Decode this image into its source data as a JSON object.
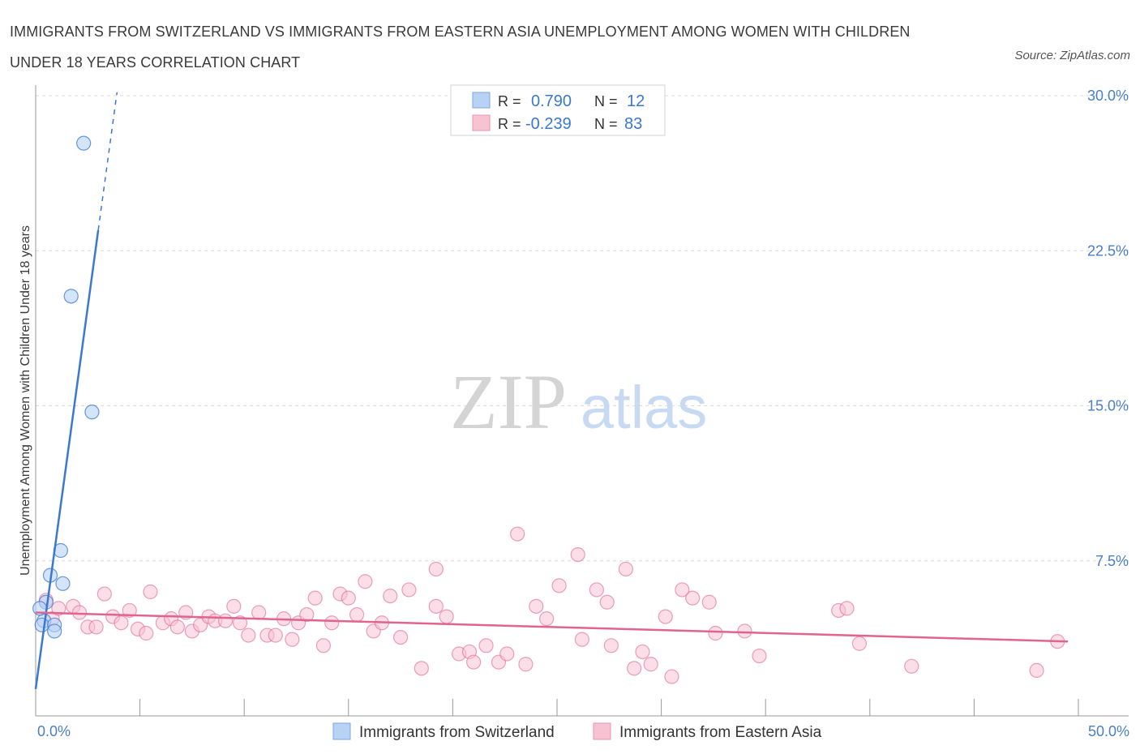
{
  "title_line1": "IMMIGRANTS FROM SWITZERLAND VS IMMIGRANTS FROM EASTERN ASIA UNEMPLOYMENT AMONG WOMEN WITH CHILDREN",
  "title_line2": "UNDER 18 YEARS CORRELATION CHART",
  "source": "Source: ZipAtlas.com",
  "watermark": {
    "zip": "ZIP",
    "atlas": "atlas"
  },
  "colors": {
    "blue": "#3a78d2",
    "blue_fill": "#b8d2f5",
    "pink": "#e0648f",
    "pink_fill": "#f7c3d3",
    "tick": "#4a7fc9",
    "grid": "#dcdcdc"
  },
  "stats": [
    {
      "r_label": "R =",
      "r_value": "0.790",
      "n_label": "N =",
      "n_value": "12"
    },
    {
      "r_label": "R =",
      "r_value": "-0.239",
      "n_label": "N =",
      "n_value": "83"
    }
  ],
  "chart_data": {
    "type": "scatter",
    "title": "Immigrants from Switzerland vs Immigrants from Eastern Asia Unemployment Among Women with Children Under 18 years Correlation Chart",
    "xlabel": "",
    "ylabel": "Unemployment Among Women with Children Under 18 years",
    "xlim": [
      0,
      50
    ],
    "ylim": [
      0,
      30
    ],
    "x_tick_labels": [
      "0.0%",
      "50.0%"
    ],
    "y_ticks": [
      7.5,
      15.0,
      22.5,
      30.0
    ],
    "y_tick_labels": [
      "7.5%",
      "15.0%",
      "22.5%",
      "30.0%"
    ],
    "grid": true,
    "legend_position": "bottom",
    "series": [
      {
        "name": "Immigrants from Switzerland",
        "color": "#3a78d2",
        "fill": "#b8d2f5",
        "r": 0.79,
        "n": 12,
        "trend": {
          "x0": 0.0,
          "y0": 1.3,
          "x1": 3.0,
          "y1": 23.5,
          "x_dash_end": 3.9
        },
        "points": [
          [
            2.3,
            27.7
          ],
          [
            1.7,
            20.3
          ],
          [
            2.7,
            14.7
          ],
          [
            1.2,
            8.0
          ],
          [
            0.7,
            6.8
          ],
          [
            1.3,
            6.4
          ],
          [
            0.5,
            5.5
          ],
          [
            0.4,
            4.6
          ],
          [
            0.3,
            4.4
          ],
          [
            0.9,
            4.4
          ],
          [
            0.9,
            4.1
          ],
          [
            0.2,
            5.2
          ]
        ]
      },
      {
        "name": "Immigrants from Eastern Asia",
        "color": "#e0648f",
        "fill": "#f7c3d3",
        "r": -0.239,
        "n": 83,
        "trend": {
          "x0": 0.0,
          "y0": 5.0,
          "x1": 49.5,
          "y1": 3.6
        },
        "points": [
          [
            0.5,
            5.6
          ],
          [
            0.8,
            4.7
          ],
          [
            1.1,
            5.2
          ],
          [
            1.8,
            5.3
          ],
          [
            2.1,
            5.0
          ],
          [
            2.5,
            4.3
          ],
          [
            2.9,
            4.3
          ],
          [
            3.3,
            5.9
          ],
          [
            3.7,
            4.8
          ],
          [
            4.1,
            4.5
          ],
          [
            4.5,
            5.1
          ],
          [
            4.9,
            4.2
          ],
          [
            5.3,
            4.0
          ],
          [
            5.5,
            6.0
          ],
          [
            6.1,
            4.5
          ],
          [
            6.5,
            4.7
          ],
          [
            6.8,
            4.3
          ],
          [
            7.2,
            5.0
          ],
          [
            7.5,
            4.1
          ],
          [
            7.9,
            4.4
          ],
          [
            8.3,
            4.8
          ],
          [
            8.6,
            4.6
          ],
          [
            9.1,
            4.6
          ],
          [
            9.5,
            5.3
          ],
          [
            9.8,
            4.5
          ],
          [
            10.2,
            3.9
          ],
          [
            10.7,
            5.0
          ],
          [
            11.1,
            3.9
          ],
          [
            11.5,
            3.9
          ],
          [
            11.9,
            4.7
          ],
          [
            12.3,
            3.7
          ],
          [
            12.6,
            4.5
          ],
          [
            13.0,
            4.9
          ],
          [
            13.4,
            5.7
          ],
          [
            13.8,
            3.4
          ],
          [
            14.2,
            4.5
          ],
          [
            14.6,
            5.9
          ],
          [
            15.0,
            5.7
          ],
          [
            15.4,
            4.9
          ],
          [
            15.8,
            6.5
          ],
          [
            16.2,
            4.1
          ],
          [
            16.6,
            4.5
          ],
          [
            17.0,
            5.8
          ],
          [
            17.5,
            3.8
          ],
          [
            17.9,
            6.1
          ],
          [
            18.5,
            2.3
          ],
          [
            19.2,
            5.3
          ],
          [
            19.2,
            7.1
          ],
          [
            19.7,
            4.8
          ],
          [
            20.3,
            3.0
          ],
          [
            20.8,
            3.1
          ],
          [
            21.0,
            2.6
          ],
          [
            21.6,
            3.4
          ],
          [
            22.2,
            2.6
          ],
          [
            22.6,
            3.0
          ],
          [
            23.1,
            8.8
          ],
          [
            23.5,
            2.5
          ],
          [
            24.0,
            5.3
          ],
          [
            24.5,
            4.7
          ],
          [
            25.1,
            6.3
          ],
          [
            26.0,
            7.8
          ],
          [
            26.2,
            3.7
          ],
          [
            26.9,
            6.1
          ],
          [
            27.4,
            5.5
          ],
          [
            27.6,
            3.4
          ],
          [
            28.3,
            7.1
          ],
          [
            28.7,
            2.3
          ],
          [
            29.1,
            3.1
          ],
          [
            29.5,
            2.5
          ],
          [
            30.2,
            4.8
          ],
          [
            30.5,
            1.9
          ],
          [
            31.0,
            6.1
          ],
          [
            31.5,
            5.7
          ],
          [
            32.3,
            5.5
          ],
          [
            32.6,
            4.0
          ],
          [
            34.0,
            4.1
          ],
          [
            34.7,
            2.9
          ],
          [
            38.5,
            5.1
          ],
          [
            38.9,
            5.2
          ],
          [
            39.5,
            3.5
          ],
          [
            42.0,
            2.4
          ],
          [
            48.0,
            2.2
          ],
          [
            49.0,
            3.6
          ]
        ]
      }
    ]
  }
}
